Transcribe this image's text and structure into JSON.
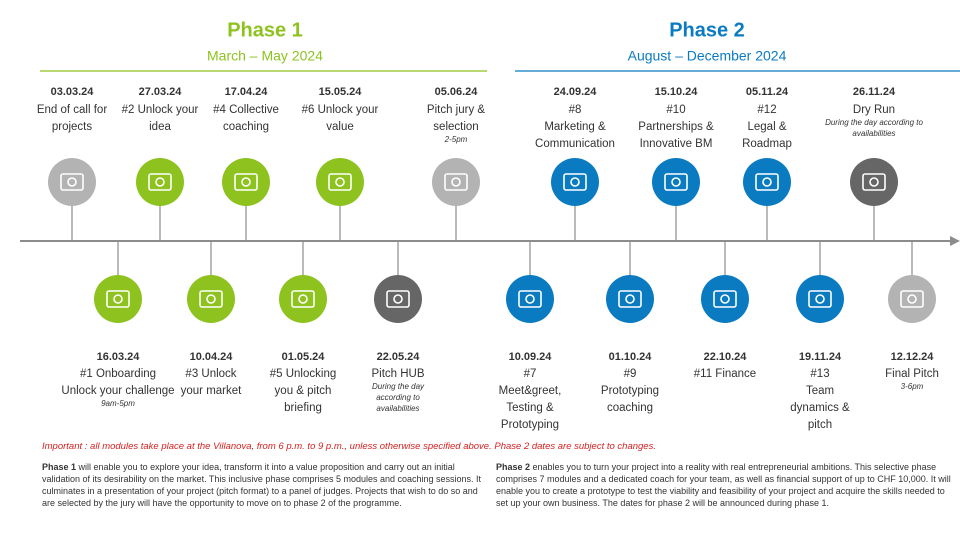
{
  "phases": [
    {
      "title": "Phase 1",
      "dates": "March – May 2024",
      "color": "#8dc21f"
    },
    {
      "title": "Phase 2",
      "dates": "August – December 2024",
      "color": "#0b7bc1"
    }
  ],
  "top_milestones": [
    {
      "date": "03.03.24",
      "lines": [
        "End of call for",
        "projects"
      ],
      "color": "#b3b3b3"
    },
    {
      "date": "27.03.24",
      "lines": [
        "#2 Unlock your",
        "idea"
      ],
      "color": "#8dc21f"
    },
    {
      "date": "17.04.24",
      "lines": [
        "#4 Collective",
        "coaching"
      ],
      "color": "#8dc21f"
    },
    {
      "date": "15.05.24",
      "lines": [
        "#6 Unlock your",
        "value"
      ],
      "color": "#8dc21f"
    },
    {
      "date": "05.06.24",
      "lines": [
        "Pitch jury &",
        "selection"
      ],
      "note": [
        "2-5pm"
      ],
      "color": "#b3b3b3"
    },
    {
      "date": "24.09.24",
      "lines": [
        "#8",
        "Marketing &",
        "Communication"
      ],
      "color": "#0b7bc1"
    },
    {
      "date": "15.10.24",
      "lines": [
        "#10",
        "Partnerships &",
        "Innovative BM"
      ],
      "color": "#0b7bc1"
    },
    {
      "date": "05.11.24",
      "lines": [
        "#12",
        "Legal &",
        "Roadmap"
      ],
      "color": "#0b7bc1"
    },
    {
      "date": "26.11.24",
      "lines": [
        "Dry Run"
      ],
      "note": [
        "During the day according to",
        "availabilities"
      ],
      "color": "#666666"
    }
  ],
  "bottom_milestones": [
    {
      "date": "16.03.24",
      "lines": [
        "#1 Onboarding",
        "Unlock your challenge"
      ],
      "note": [
        "9am-5pm"
      ],
      "color": "#8dc21f"
    },
    {
      "date": "10.04.24",
      "lines": [
        "#3 Unlock",
        "your market"
      ],
      "color": "#8dc21f"
    },
    {
      "date": "01.05.24",
      "lines": [
        "#5 Unlocking",
        "you & pitch",
        "briefing"
      ],
      "color": "#8dc21f"
    },
    {
      "date": "22.05.24",
      "lines": [
        "Pitch HUB"
      ],
      "note": [
        "During the day",
        "according to",
        "availabilities"
      ],
      "color": "#666666"
    },
    {
      "date": "10.09.24",
      "lines": [
        "#7",
        "Meet&greet,",
        "Testing &",
        "Prototyping"
      ],
      "color": "#0b7bc1"
    },
    {
      "date": "01.10.24",
      "lines": [
        "#9",
        "Prototyping",
        "coaching"
      ],
      "color": "#0b7bc1"
    },
    {
      "date": "22.10.24",
      "lines": [
        "#11 Finance"
      ],
      "color": "#0b7bc1"
    },
    {
      "date": "19.11.24",
      "lines": [
        "#13",
        "Team",
        "dynamics &",
        "pitch"
      ],
      "color": "#0b7bc1"
    },
    {
      "date": "12.12.24",
      "lines": [
        "Final Pitch"
      ],
      "note": [
        "3-6pm"
      ],
      "color": "#b3b3b3"
    }
  ],
  "important": "Important : all modules take place at the Villanova, from 6 p.m. to 9 p.m., unless otherwise specified above. Phase 2 dates are subject to changes.",
  "paragraphs": [
    {
      "bold": "Phase 1",
      "text": " will enable you to explore your idea, transform it into a value proposition and carry out an initial validation of its desirability on the market. This inclusive phase comprises 5 modules and coaching sessions. It culminates in a presentation of your project (pitch format) to a panel of judges. Projects that wish to do so and are selected by the jury will have the opportunity to move on to phase 2 of the programme."
    },
    {
      "bold": "Phase 2",
      "text": " enables you to turn your project into a reality with real entrepreneurial ambitions. This selective phase comprises 7 modules and a dedicated coach for your team, as well as financial support of up to CHF 10,000. It will enable you to create a prototype to test the viability and feasibility of your project and acquire the skills needed to set up your own business. The dates for phase 2 will be announced during phase 1."
    }
  ]
}
